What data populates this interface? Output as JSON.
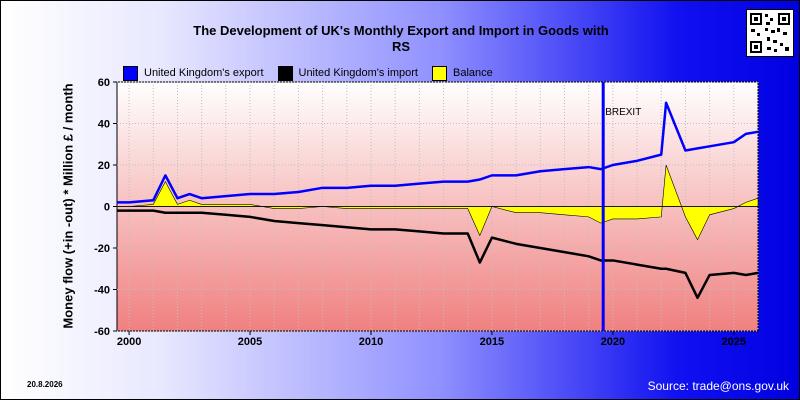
{
  "header": {
    "title_line1": "The Development of UK's Monthly Export and Import in Goods with",
    "title_line2": "RS"
  },
  "footer": {
    "date": "20.8.2026",
    "source": "Source: trade@ons.gov.uk"
  },
  "colors": {
    "export": "#0000ff",
    "import": "#000000",
    "balance": "#ffff00",
    "brexit_line": "#0000ff"
  },
  "chart_data": {
    "type": "line",
    "title": "The Development of UK's Monthly Export and Import in Goods with RS",
    "ylabel": "Money flow (+in -out) * Million £ / month",
    "xlabel": "",
    "xlim": [
      1999.5,
      2026.0
    ],
    "ylim": [
      -60,
      60
    ],
    "x_ticks": [
      2000,
      2005,
      2010,
      2015,
      2020,
      2025
    ],
    "y_ticks": [
      -60,
      -40,
      -20,
      0,
      20,
      40,
      60
    ],
    "grid": true,
    "legend_position": "top-left",
    "annotations": [
      {
        "label": "BREXIT",
        "x": 2019.6
      }
    ],
    "x": [
      1999.5,
      2000,
      2001,
      2001.5,
      2002,
      2002.5,
      2003,
      2004,
      2005,
      2006,
      2007,
      2008,
      2009,
      2010,
      2011,
      2012,
      2013,
      2014,
      2014.5,
      2015,
      2016,
      2017,
      2018,
      2019,
      2019.5,
      2020,
      2021,
      2022,
      2022.2,
      2023,
      2023.5,
      2024,
      2025,
      2025.5,
      2026
    ],
    "series": [
      {
        "name": "United Kingdom's export",
        "values": [
          2,
          2,
          3,
          15,
          4,
          6,
          4,
          5,
          6,
          6,
          7,
          9,
          9,
          10,
          10,
          11,
          12,
          12,
          13,
          15,
          15,
          17,
          18,
          19,
          18,
          20,
          22,
          25,
          50,
          27,
          28,
          29,
          31,
          35,
          36
        ]
      },
      {
        "name": "United Kingdom's import",
        "values": [
          -2,
          -2,
          -2,
          -3,
          -3,
          -3,
          -3,
          -4,
          -5,
          -7,
          -8,
          -9,
          -10,
          -11,
          -11,
          -12,
          -13,
          -13,
          -27,
          -15,
          -18,
          -20,
          -22,
          -24,
          -26,
          -26,
          -28,
          -30,
          -30,
          -32,
          -44,
          -33,
          -32,
          -33,
          -32
        ]
      },
      {
        "name": "Balance",
        "values": [
          0,
          0,
          1,
          12,
          1,
          3,
          1,
          1,
          1,
          -1,
          -1,
          0,
          -1,
          -1,
          -1,
          -1,
          -1,
          -1,
          -14,
          0,
          -3,
          -3,
          -4,
          -5,
          -8,
          -6,
          -6,
          -5,
          20,
          -5,
          -16,
          -4,
          -1,
          2,
          4
        ]
      }
    ]
  }
}
